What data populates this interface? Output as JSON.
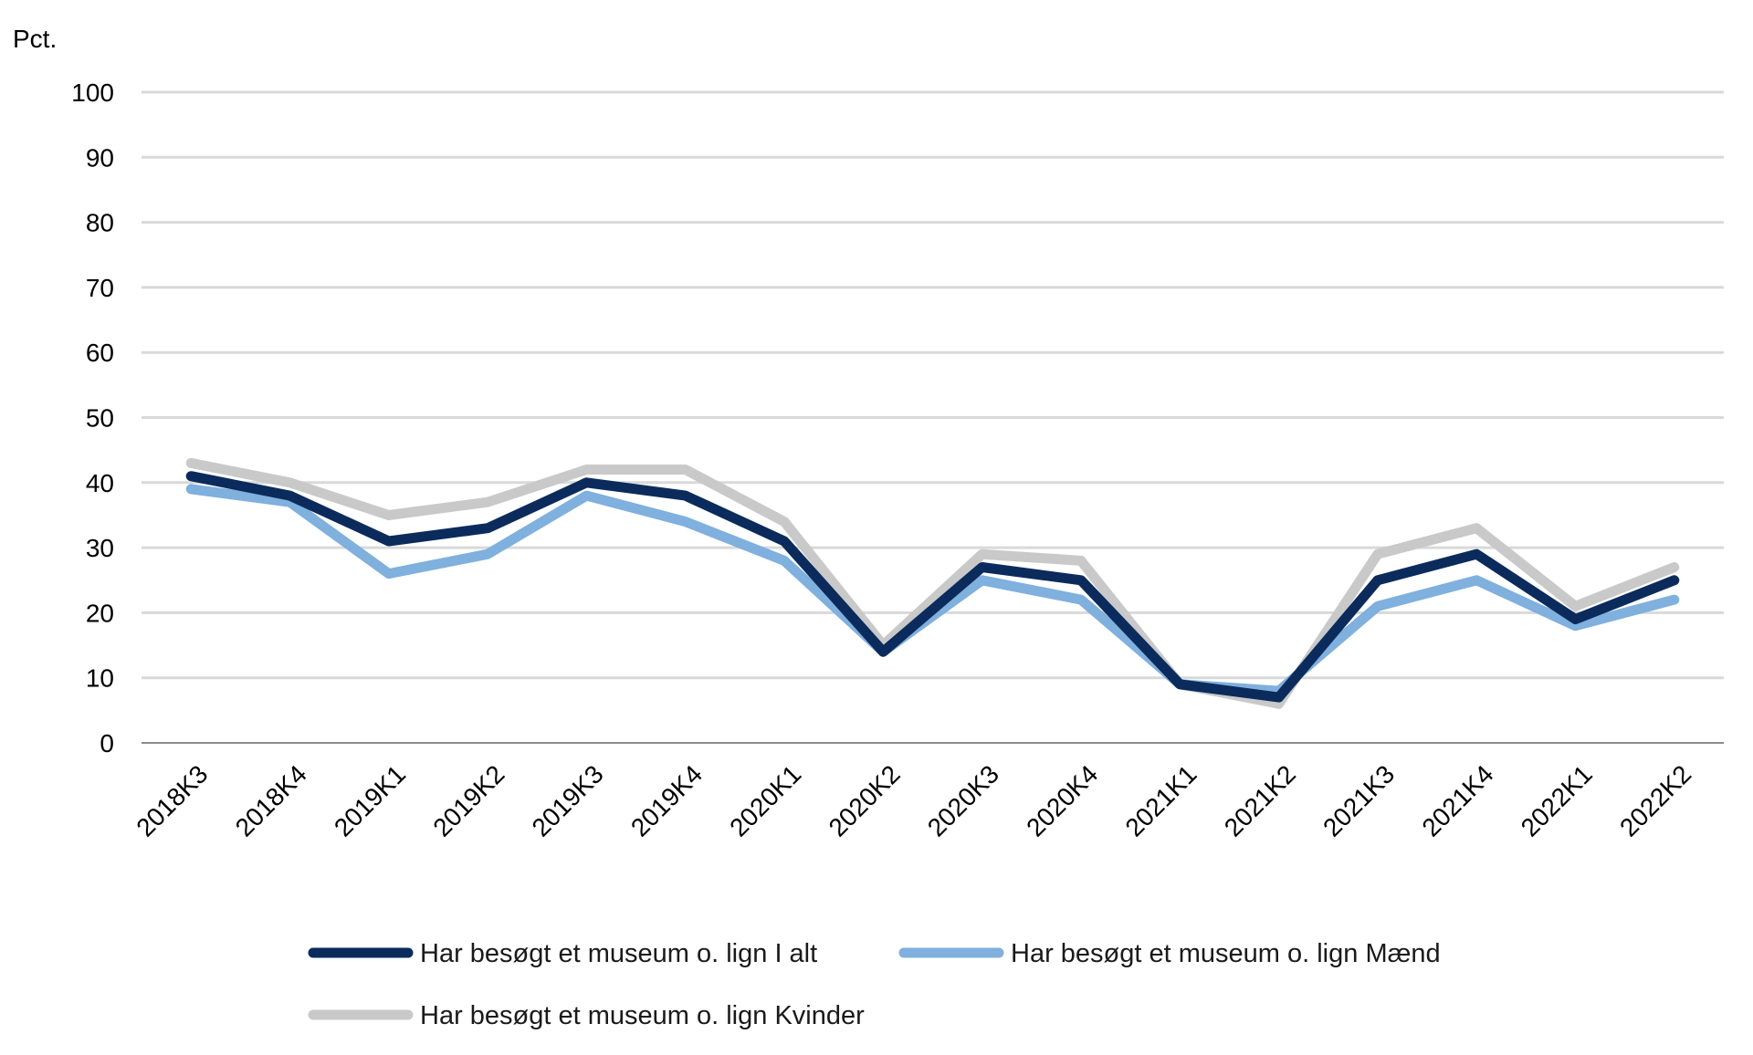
{
  "chart_data": {
    "type": "line",
    "ylabel": "Pct.",
    "ylim": [
      0,
      100
    ],
    "yticks": [
      0,
      10,
      20,
      30,
      40,
      50,
      60,
      70,
      80,
      90,
      100
    ],
    "grid": true,
    "legend_position": "bottom",
    "categories": [
      "2018K3",
      "2018K4",
      "2019K1",
      "2019K2",
      "2019K3",
      "2019K4",
      "2020K1",
      "2020K2",
      "2020K3",
      "2020K4",
      "2021K1",
      "2021K2",
      "2021K3",
      "2021K4",
      "2022K1",
      "2022K2"
    ],
    "series": [
      {
        "name": "Har besøgt et museum o. lign I alt",
        "color": "#0b2b5c",
        "values": [
          41,
          38,
          31,
          33,
          40,
          38,
          31,
          14,
          27,
          25,
          9,
          7,
          25,
          29,
          19,
          25
        ]
      },
      {
        "name": "Har besøgt et museum o. lign Mænd",
        "color": "#7fb0de",
        "values": [
          39,
          37,
          26,
          29,
          38,
          34,
          28,
          14,
          25,
          22,
          9,
          8,
          21,
          25,
          18,
          22
        ]
      },
      {
        "name": "Har besøgt et museum o. lign Kvinder",
        "color": "#c9c9c9",
        "values": [
          43,
          40,
          35,
          37,
          42,
          42,
          34,
          15,
          29,
          28,
          9,
          6,
          29,
          33,
          21,
          27
        ]
      }
    ]
  }
}
